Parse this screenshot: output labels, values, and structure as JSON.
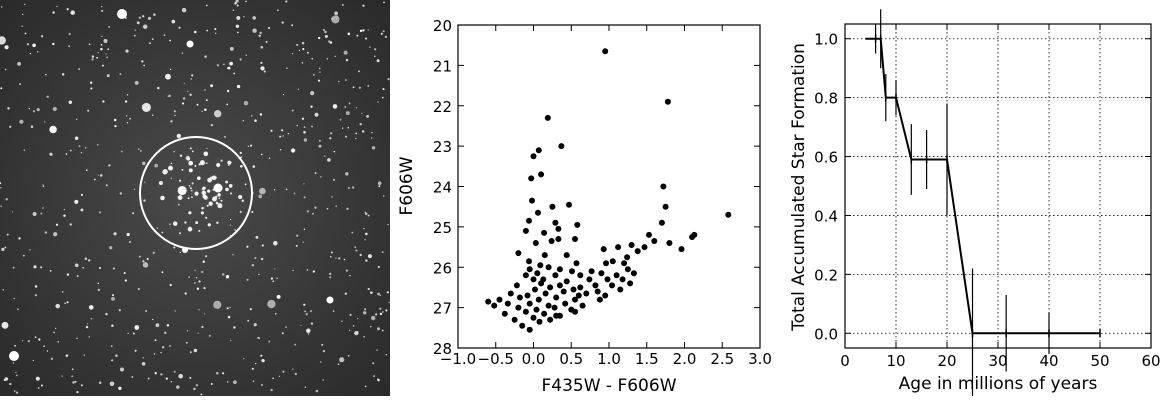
{
  "chart_data": [
    {
      "type": "image",
      "title": "",
      "annotations": [
        "white circle outlining a star cluster"
      ]
    },
    {
      "type": "scatter",
      "title": "",
      "xlabel": "F435W - F606W",
      "ylabel": "F606W",
      "xlim": [
        -1.0,
        3.0
      ],
      "ylim": [
        28,
        20
      ],
      "y_inverted": true,
      "xticks": [
        "−1.0",
        "−0.5",
        "0.0",
        "0.5",
        "1.0",
        "1.5",
        "2.0",
        "2.5",
        "3.0"
      ],
      "yticks": [
        "20",
        "21",
        "22",
        "23",
        "24",
        "25",
        "26",
        "27",
        "28"
      ],
      "grid": false,
      "points": [
        [
          0.95,
          20.65
        ],
        [
          1.78,
          21.9
        ],
        [
          0.19,
          22.3
        ],
        [
          0.0,
          23.25
        ],
        [
          0.07,
          23.1
        ],
        [
          0.37,
          23.0
        ],
        [
          -0.03,
          23.8
        ],
        [
          0.1,
          23.7
        ],
        [
          1.72,
          24.0
        ],
        [
          -0.02,
          24.35
        ],
        [
          0.25,
          24.5
        ],
        [
          0.47,
          24.45
        ],
        [
          0.06,
          24.65
        ],
        [
          1.75,
          24.5
        ],
        [
          2.58,
          24.7
        ],
        [
          -0.06,
          24.85
        ],
        [
          0.29,
          24.9
        ],
        [
          0.58,
          24.95
        ],
        [
          1.7,
          24.9
        ],
        [
          -0.1,
          25.1
        ],
        [
          0.14,
          25.15
        ],
        [
          0.33,
          25.05
        ],
        [
          0.55,
          25.3
        ],
        [
          0.33,
          25.3
        ],
        [
          0.24,
          25.35
        ],
        [
          1.53,
          25.2
        ],
        [
          2.13,
          25.2
        ],
        [
          2.1,
          25.25
        ],
        [
          0.03,
          25.4
        ],
        [
          1.6,
          25.35
        ],
        [
          1.8,
          25.4
        ],
        [
          1.3,
          25.45
        ],
        [
          1.47,
          25.5
        ],
        [
          0.93,
          25.55
        ],
        [
          1.12,
          25.5
        ],
        [
          1.38,
          25.6
        ],
        [
          1.96,
          25.55
        ],
        [
          -0.2,
          25.65
        ],
        [
          0.15,
          25.7
        ],
        [
          0.44,
          25.7
        ],
        [
          1.24,
          25.75
        ],
        [
          -0.06,
          25.85
        ],
        [
          0.09,
          25.95
        ],
        [
          0.57,
          25.9
        ],
        [
          0.96,
          25.9
        ],
        [
          1.05,
          25.85
        ],
        [
          1.2,
          25.9
        ],
        [
          -0.05,
          26.05
        ],
        [
          0.2,
          26.0
        ],
        [
          0.35,
          26.05
        ],
        [
          0.51,
          26.1
        ],
        [
          0.77,
          26.1
        ],
        [
          1.25,
          26.05
        ],
        [
          -0.1,
          26.2
        ],
        [
          0.05,
          26.15
        ],
        [
          0.29,
          26.2
        ],
        [
          0.62,
          26.2
        ],
        [
          0.9,
          26.15
        ],
        [
          1.1,
          26.2
        ],
        [
          1.33,
          26.15
        ],
        [
          0.0,
          26.3
        ],
        [
          0.13,
          26.3
        ],
        [
          0.44,
          26.35
        ],
        [
          0.74,
          26.3
        ],
        [
          0.98,
          26.3
        ],
        [
          1.18,
          26.3
        ],
        [
          -0.22,
          26.45
        ],
        [
          0.1,
          26.4
        ],
        [
          0.35,
          26.45
        ],
        [
          0.62,
          26.5
        ],
        [
          0.82,
          26.45
        ],
        [
          1.04,
          26.45
        ],
        [
          1.28,
          26.4
        ],
        [
          0.02,
          26.55
        ],
        [
          0.22,
          26.5
        ],
        [
          0.53,
          26.55
        ],
        [
          0.85,
          26.6
        ],
        [
          1.15,
          26.55
        ],
        [
          -0.3,
          26.65
        ],
        [
          -0.08,
          26.7
        ],
        [
          0.16,
          26.65
        ],
        [
          0.4,
          26.6
        ],
        [
          0.7,
          26.65
        ],
        [
          0.95,
          26.7
        ],
        [
          -0.45,
          26.8
        ],
        [
          -0.18,
          26.75
        ],
        [
          0.07,
          26.8
        ],
        [
          0.3,
          26.75
        ],
        [
          0.55,
          26.8
        ],
        [
          0.88,
          26.8
        ],
        [
          -0.6,
          26.85
        ],
        [
          -0.34,
          26.9
        ],
        [
          -0.05,
          26.9
        ],
        [
          0.2,
          26.95
        ],
        [
          0.42,
          26.9
        ],
        [
          0.65,
          26.95
        ],
        [
          -0.52,
          26.95
        ],
        [
          -0.2,
          27.0
        ],
        [
          0.04,
          27.05
        ],
        [
          0.28,
          27.0
        ],
        [
          0.5,
          27.05
        ],
        [
          -0.1,
          27.1
        ],
        [
          0.14,
          27.15
        ],
        [
          0.35,
          27.2
        ],
        [
          0.55,
          27.1
        ],
        [
          -0.38,
          27.15
        ],
        [
          0.0,
          27.25
        ],
        [
          0.22,
          27.3
        ],
        [
          -0.25,
          27.3
        ],
        [
          0.08,
          27.35
        ],
        [
          -0.15,
          27.45
        ],
        [
          0.3,
          27.2
        ],
        [
          -0.05,
          27.55
        ],
        [
          0.6,
          26.7
        ]
      ]
    },
    {
      "type": "line",
      "title": "",
      "xlabel": "Age in millions of years",
      "ylabel": "Total Accumulated Star Formation",
      "xlim": [
        0,
        60
      ],
      "ylim": [
        -0.05,
        1.05
      ],
      "xticks": [
        "0",
        "10",
        "20",
        "30",
        "40",
        "50",
        "60"
      ],
      "yticks": [
        "0.0",
        "0.2",
        "0.4",
        "0.6",
        "0.8",
        "1.0"
      ],
      "grid": true,
      "x": [
        6,
        7,
        8,
        10,
        13,
        16,
        20,
        25,
        31.6,
        40,
        50
      ],
      "y": [
        1.0,
        1.0,
        0.8,
        0.8,
        0.59,
        0.59,
        0.59,
        0.0,
        0.0,
        0.0,
        0.0
      ],
      "yerr": [
        0.05,
        0.1,
        0.08,
        0.06,
        0.12,
        0.1,
        0.19,
        0.22,
        0.13,
        0.07,
        0.0
      ]
    }
  ]
}
